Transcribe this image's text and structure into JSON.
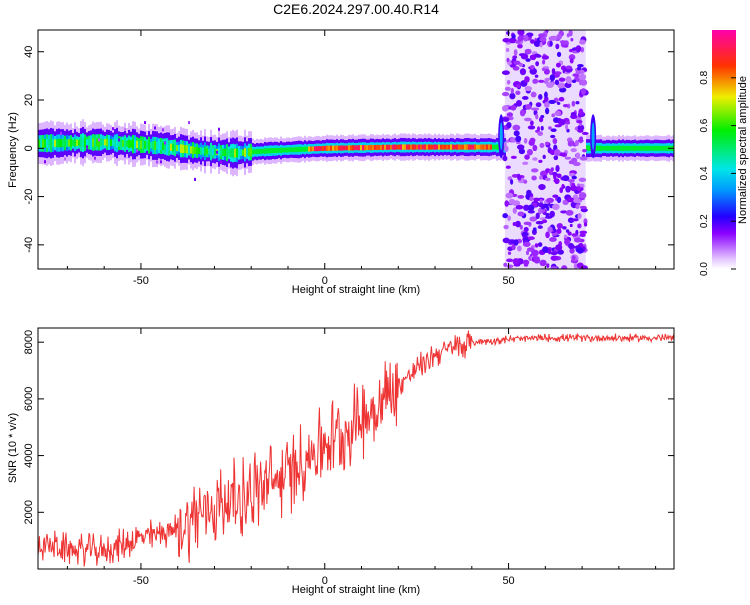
{
  "title": "C2E6.2024.297.00.40.R14",
  "chart_data": [
    {
      "type": "heatmap",
      "xlabel": "Height of straight line (km)",
      "ylabel": "Frequency (Hz)",
      "xlim": [
        -78,
        95
      ],
      "ylim": [
        -50,
        49
      ],
      "xticks": [
        -50,
        0,
        50
      ],
      "yticks": [
        -40,
        -20,
        0,
        20,
        40
      ],
      "colorbar": {
        "label": "Normalized spectral amplitude",
        "range": [
          0,
          1
        ],
        "ticks": [
          "0.0",
          "0.2",
          "0.4",
          "0.6",
          "0.8"
        ],
        "tick_values": [
          0,
          0.2,
          0.4,
          0.6,
          0.8
        ]
      },
      "features": {
        "main_ridge": {
          "x_range": [
            -78,
            95
          ],
          "freq_center": [
            2,
            2.5,
            1,
            -1,
            -2,
            -1,
            0,
            0.5,
            0.5,
            0.5,
            0,
            0
          ],
          "knots_km": [
            -78,
            -60,
            -45,
            -35,
            -25,
            -15,
            0,
            20,
            40,
            47,
            75,
            95
          ]
        },
        "noise_band": {
          "x_range": [
            49,
            71
          ],
          "freq_range": [
            -50,
            49
          ]
        },
        "transients_km": [
          48,
          73
        ]
      }
    },
    {
      "type": "line",
      "xlabel": "Height of straight line (km)",
      "ylabel": "SNR (10 * v/v)",
      "xlim": [
        -78,
        95
      ],
      "ylim": [
        0,
        8500
      ],
      "xticks": [
        -50,
        0,
        50
      ],
      "yticks": [
        2000,
        4000,
        6000,
        8000
      ],
      "series": [
        {
          "color": "#ee3333",
          "trend_x": [
            -78,
            -70,
            -60,
            -50,
            -40,
            -35,
            -30,
            -20,
            -10,
            0,
            5,
            10,
            15,
            20,
            30,
            40,
            50,
            60,
            70,
            80,
            95
          ],
          "trend_y": [
            900,
            700,
            650,
            1100,
            1400,
            1900,
            2200,
            2700,
            3300,
            4500,
            4800,
            5300,
            5800,
            6500,
            7600,
            8000,
            8100,
            8150,
            8150,
            8150,
            8150
          ]
        }
      ]
    }
  ]
}
